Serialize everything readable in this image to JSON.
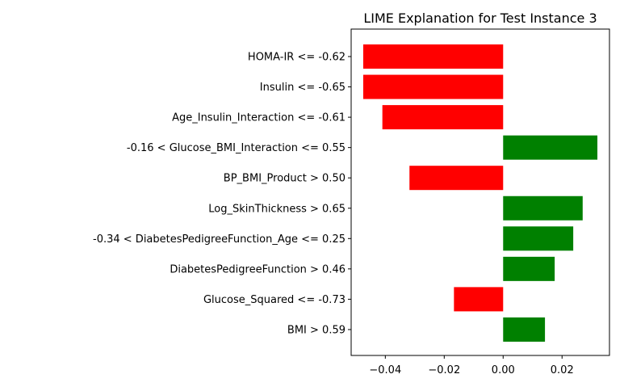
{
  "chart_data": {
    "type": "bar",
    "orientation": "horizontal",
    "title": "LIME Explanation for Test Instance 3",
    "xlabel": "",
    "ylabel": "",
    "categories": [
      "HOMA-IR <= -0.62",
      "Insulin <= -0.65",
      "Age_Insulin_Interaction <= -0.61",
      "-0.16 < Glucose_BMI_Interaction <= 0.55",
      "BP_BMI_Product > 0.50",
      "Log_SkinThickness > 0.65",
      "-0.34 < DiabetesPedigreeFunction_Age <= 0.25",
      "DiabetesPedigreeFunction > 0.46",
      "Glucose_Squared <= -0.73",
      "BMI > 0.59"
    ],
    "values": [
      -0.0475,
      -0.0475,
      -0.041,
      0.032,
      -0.0318,
      0.027,
      0.0238,
      0.0175,
      -0.0167,
      0.0142
    ],
    "xlim": [
      -0.0516,
      0.0361
    ],
    "xticks": [
      -0.04,
      -0.02,
      0.0,
      0.02
    ],
    "xtick_labels": [
      "−0.04",
      "−0.02",
      "0.00",
      "0.02"
    ],
    "colors": {
      "positive": "#008000",
      "negative": "#ff0000"
    },
    "grid": false,
    "legend": "none"
  }
}
